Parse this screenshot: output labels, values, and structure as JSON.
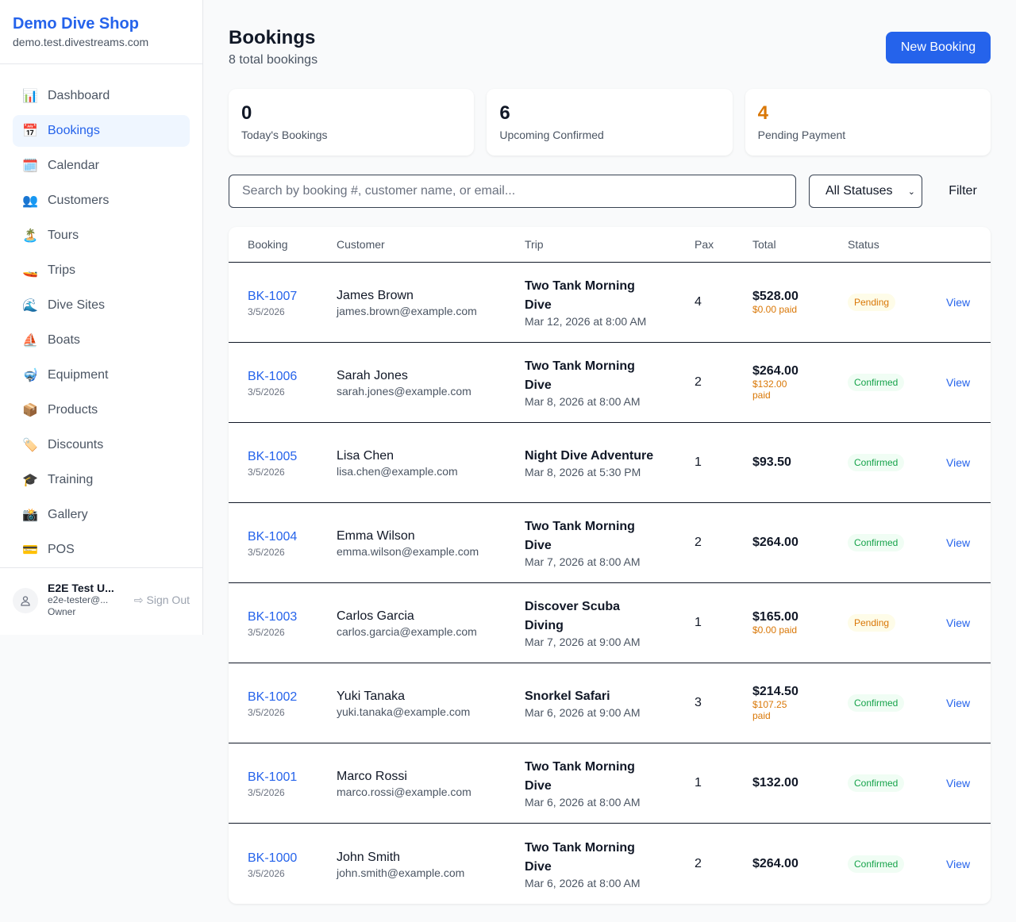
{
  "sidebar": {
    "shop_name": "Demo Dive Shop",
    "domain": "demo.test.divestreams.com",
    "items": [
      {
        "label": "Dashboard",
        "icon": "📊"
      },
      {
        "label": "Bookings",
        "icon": "📅",
        "active": true
      },
      {
        "label": "Calendar",
        "icon": "🗓️"
      },
      {
        "label": "Customers",
        "icon": "👥"
      },
      {
        "label": "Tours",
        "icon": "🏝️"
      },
      {
        "label": "Trips",
        "icon": "🚤"
      },
      {
        "label": "Dive Sites",
        "icon": "🌊"
      },
      {
        "label": "Boats",
        "icon": "⛵"
      },
      {
        "label": "Equipment",
        "icon": "🤿"
      },
      {
        "label": "Products",
        "icon": "📦"
      },
      {
        "label": "Discounts",
        "icon": "🏷️"
      },
      {
        "label": "Training",
        "icon": "🎓"
      },
      {
        "label": "Gallery",
        "icon": "📸"
      },
      {
        "label": "POS",
        "icon": "💳"
      }
    ],
    "user": {
      "name": "E2E Test U...",
      "email": "e2e-tester@...",
      "role": "Owner",
      "sign_out": "Sign Out"
    }
  },
  "header": {
    "title": "Bookings",
    "subtitle": "8 total bookings",
    "new_button": "New Booking"
  },
  "stats": [
    {
      "value": "0",
      "label": "Today's Bookings",
      "color": "#111827"
    },
    {
      "value": "6",
      "label": "Upcoming Confirmed",
      "color": "#111827"
    },
    {
      "value": "4",
      "label": "Pending Payment",
      "color": "#d97706"
    }
  ],
  "filters": {
    "search_placeholder": "Search by booking #, customer name, or email...",
    "status_selected": "All Statuses",
    "filter_button": "Filter"
  },
  "table": {
    "headers": [
      "Booking",
      "Customer",
      "Trip",
      "Pax",
      "Total",
      "Status",
      ""
    ],
    "rows": [
      {
        "id": "BK-1007",
        "date": "3/5/2026",
        "name": "James Brown",
        "email": "james.brown@example.com",
        "trip": "Two Tank Morning Dive",
        "trip_date": "Mar 12, 2026 at 8:00 AM",
        "pax": "4",
        "total": "$528.00",
        "paid": "$0.00 paid",
        "status": "Pending",
        "action": "View"
      },
      {
        "id": "BK-1006",
        "date": "3/5/2026",
        "name": "Sarah Jones",
        "email": "sarah.jones@example.com",
        "trip": "Two Tank Morning Dive",
        "trip_date": "Mar 8, 2026 at 8:00 AM",
        "pax": "2",
        "total": "$264.00",
        "paid": "$132.00 paid",
        "status": "Confirmed",
        "action": "View"
      },
      {
        "id": "BK-1005",
        "date": "3/5/2026",
        "name": "Lisa Chen",
        "email": "lisa.chen@example.com",
        "trip": "Night Dive Adventure",
        "trip_date": "Mar 8, 2026 at 5:30 PM",
        "pax": "1",
        "total": "$93.50",
        "paid": "",
        "status": "Confirmed",
        "action": "View"
      },
      {
        "id": "BK-1004",
        "date": "3/5/2026",
        "name": "Emma Wilson",
        "email": "emma.wilson@example.com",
        "trip": "Two Tank Morning Dive",
        "trip_date": "Mar 7, 2026 at 8:00 AM",
        "pax": "2",
        "total": "$264.00",
        "paid": "",
        "status": "Confirmed",
        "action": "View"
      },
      {
        "id": "BK-1003",
        "date": "3/5/2026",
        "name": "Carlos Garcia",
        "email": "carlos.garcia@example.com",
        "trip": "Discover Scuba Diving",
        "trip_date": "Mar 7, 2026 at 9:00 AM",
        "pax": "1",
        "total": "$165.00",
        "paid": "$0.00 paid",
        "status": "Pending",
        "action": "View"
      },
      {
        "id": "BK-1002",
        "date": "3/5/2026",
        "name": "Yuki Tanaka",
        "email": "yuki.tanaka@example.com",
        "trip": "Snorkel Safari",
        "trip_date": "Mar 6, 2026 at 9:00 AM",
        "pax": "3",
        "total": "$214.50",
        "paid": "$107.25 paid",
        "status": "Confirmed",
        "action": "View"
      },
      {
        "id": "BK-1001",
        "date": "3/5/2026",
        "name": "Marco Rossi",
        "email": "marco.rossi@example.com",
        "trip": "Two Tank Morning Dive",
        "trip_date": "Mar 6, 2026 at 8:00 AM",
        "pax": "1",
        "total": "$132.00",
        "paid": "",
        "status": "Confirmed",
        "action": "View"
      },
      {
        "id": "BK-1000",
        "date": "3/5/2026",
        "name": "John Smith",
        "email": "john.smith@example.com",
        "trip": "Two Tank Morning Dive",
        "trip_date": "Mar 6, 2026 at 8:00 AM",
        "pax": "2",
        "total": "$264.00",
        "paid": "",
        "status": "Confirmed",
        "action": "View"
      }
    ]
  }
}
